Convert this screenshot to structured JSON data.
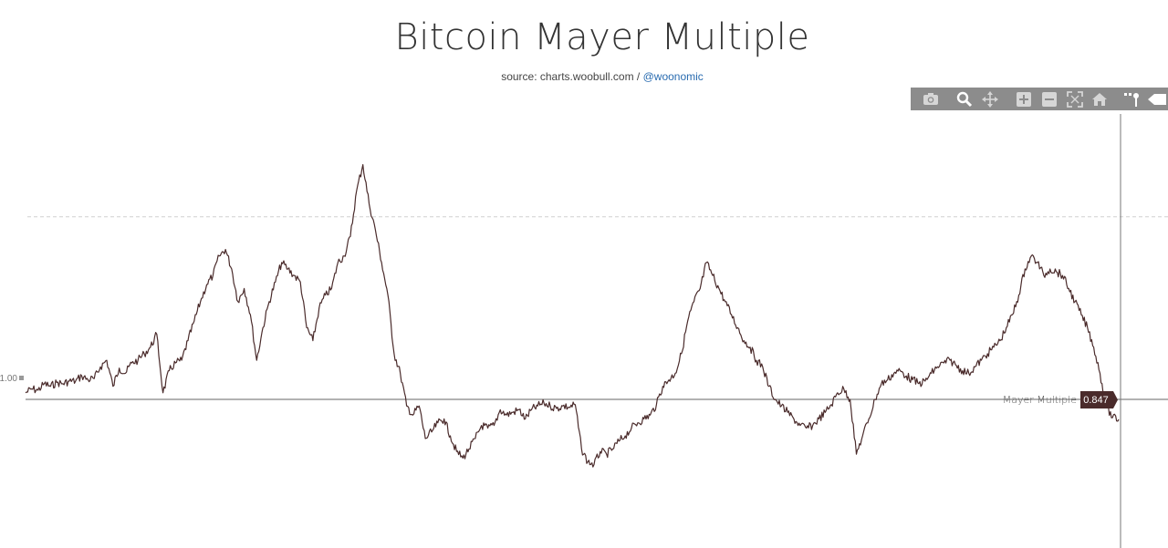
{
  "page": {
    "title": "Bitcoin Mayer Multiple",
    "subtitle_prefix": "source: charts.woobull.com / ",
    "subtitle_link": "@woonomic"
  },
  "toolbar": {
    "items": [
      {
        "name": "camera-icon"
      },
      {
        "name": "zoom-icon"
      },
      {
        "name": "pan-icon"
      },
      {
        "name": "zoom-in-icon"
      },
      {
        "name": "zoom-out-icon"
      },
      {
        "name": "autoscale-icon"
      },
      {
        "name": "home-icon"
      },
      {
        "name": "spike-lines-icon"
      },
      {
        "name": "compare-hover-icon"
      }
    ]
  },
  "chart_data": {
    "type": "line",
    "series": [
      {
        "name": "Mayer Multiple",
        "color": "#4a2b2b",
        "values": [
          1.05,
          1.08,
          1.07,
          1.12,
          1.1,
          1.13,
          1.12,
          1.14,
          1.14,
          1.18,
          1.15,
          1.16,
          1.25,
          1.3,
          1.1,
          1.24,
          1.2,
          1.28,
          1.3,
          1.35,
          1.4,
          1.5,
          1.05,
          1.22,
          1.28,
          1.3,
          1.45,
          1.6,
          1.75,
          1.88,
          1.95,
          2.1,
          2.15,
          2.0,
          1.75,
          1.85,
          1.65,
          1.3,
          1.55,
          1.75,
          1.9,
          2.05,
          2.0,
          1.95,
          1.9,
          1.55,
          1.45,
          1.7,
          1.8,
          1.85,
          2.05,
          2.1,
          2.25,
          2.6,
          2.8,
          2.5,
          2.3,
          2.05,
          1.8,
          1.35,
          1.2,
          0.95,
          0.88,
          0.95,
          0.7,
          0.75,
          0.82,
          0.85,
          0.72,
          0.6,
          0.55,
          0.62,
          0.7,
          0.8,
          0.78,
          0.8,
          0.92,
          0.88,
          0.9,
          0.92,
          0.85,
          0.92,
          0.95,
          0.97,
          0.95,
          0.93,
          0.95,
          0.94,
          0.96,
          0.62,
          0.52,
          0.5,
          0.6,
          0.58,
          0.62,
          0.68,
          0.72,
          0.78,
          0.82,
          0.85,
          0.88,
          0.96,
          1.1,
          1.15,
          1.2,
          1.35,
          1.6,
          1.75,
          1.85,
          2.05,
          1.95,
          1.85,
          1.75,
          1.65,
          1.55,
          1.45,
          1.4,
          1.3,
          1.25,
          1.1,
          1.0,
          0.95,
          0.9,
          0.85,
          0.8,
          0.78,
          0.8,
          0.85,
          0.9,
          0.96,
          1.05,
          1.08,
          1.0,
          0.58,
          0.72,
          0.85,
          1.0,
          1.12,
          1.15,
          1.2,
          1.22,
          1.18,
          1.15,
          1.12,
          1.14,
          1.2,
          1.25,
          1.28,
          1.3,
          1.26,
          1.22,
          1.2,
          1.25,
          1.3,
          1.35,
          1.4,
          1.45,
          1.55,
          1.65,
          1.8,
          2.0,
          2.1,
          2.05,
          1.95,
          2.0,
          1.98,
          1.95,
          1.85,
          1.75,
          1.65,
          1.55,
          1.4,
          1.2,
          0.95,
          0.86,
          0.847
        ]
      }
    ],
    "last_value_label": "0.847",
    "y_tick_label": "1.00",
    "reference_line_value": 2.4,
    "ylim": [
      0.2,
      3.4
    ],
    "legend": "none",
    "grid": false
  }
}
